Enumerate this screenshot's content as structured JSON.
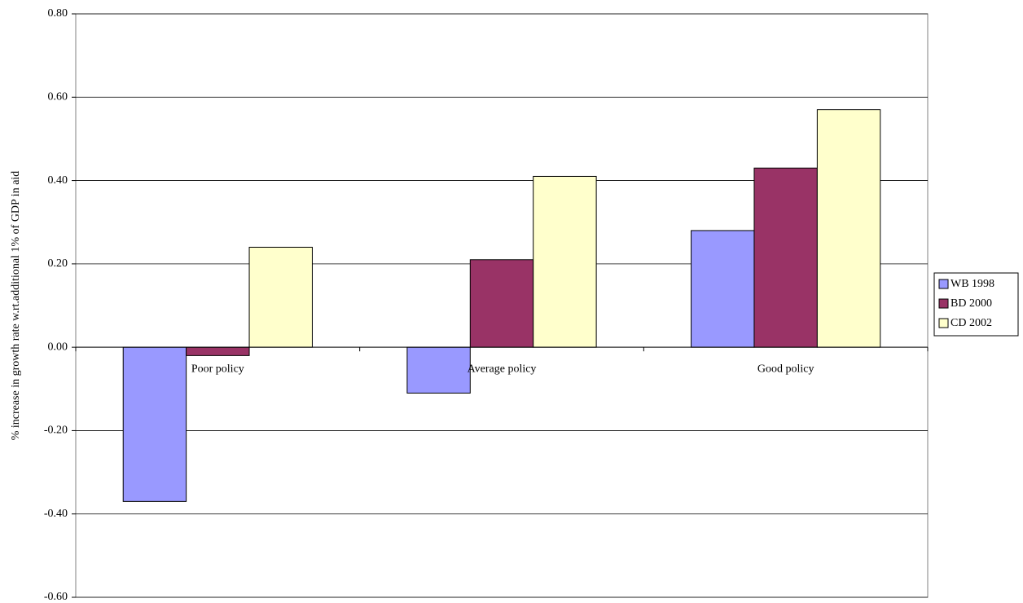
{
  "chart_data": {
    "type": "bar",
    "y_label": "% increase in growth rate w.rt.additional 1% of GDP in aid",
    "categories": [
      "Poor policy",
      "Average policy",
      "Good policy"
    ],
    "series": [
      {
        "name": "WB 1998",
        "color": "#9999ff",
        "values": [
          -0.37,
          -0.11,
          0.28
        ]
      },
      {
        "name": "BD 2000",
        "color": "#993366",
        "values": [
          -0.02,
          0.21,
          0.43
        ]
      },
      {
        "name": "CD 2002",
        "color": "#ffffcc",
        "values": [
          0.24,
          0.41,
          0.57
        ]
      }
    ],
    "ylim": [
      -0.6,
      0.8
    ],
    "yticks": [
      {
        "value": -0.6,
        "label": "-0.60"
      },
      {
        "value": -0.4,
        "label": "-0.40"
      },
      {
        "value": -0.2,
        "label": "-0.20"
      },
      {
        "value": 0,
        "label": "0.00"
      },
      {
        "value": 0.2,
        "label": "0.20"
      },
      {
        "value": 0.4,
        "label": "0.40"
      },
      {
        "value": 0.6,
        "label": "0.60"
      },
      {
        "value": 0.8,
        "label": "0.80"
      }
    ],
    "grid": true,
    "legend": "right"
  }
}
